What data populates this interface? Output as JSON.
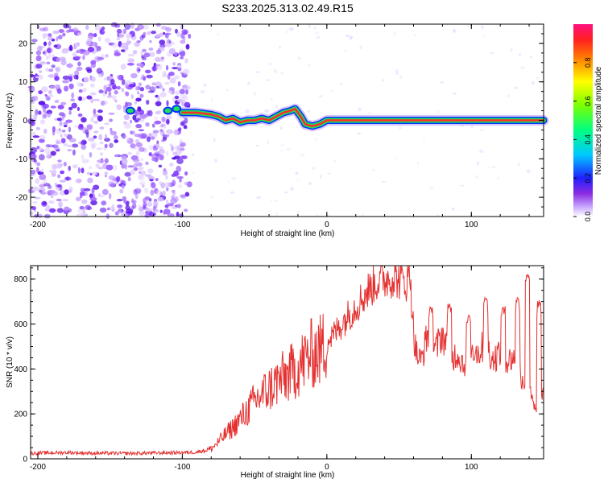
{
  "title": "S233.2025.313.02.49.R15",
  "colors": {
    "line": "#e53030",
    "band_core": "#ff2a2a",
    "band_mid": "#22dd55",
    "band_edge": "#0033ff",
    "noise": "#7a2bff"
  },
  "chart_data": [
    {
      "type": "heatmap",
      "name": "spectrogram",
      "xlabel": "Height of straight line (km)",
      "ylabel": "Frequency (Hz)",
      "xlim": [
        -205,
        150
      ],
      "ylim": [
        -25,
        25
      ],
      "xticks": [
        -200,
        -100,
        0,
        100
      ],
      "yticks": [
        -20,
        -10,
        0,
        10,
        20
      ],
      "colorbar": {
        "label": "Normalized spectral amplitude",
        "range": [
          0,
          1
        ],
        "ticks": [
          0.0,
          0.2,
          0.4,
          0.6,
          0.8
        ],
        "tick_labels": [
          "0.0",
          "0.2",
          "0.4",
          "0.6",
          "0.8"
        ]
      },
      "ridge": {
        "x": [
          -100,
          -90,
          -80,
          -75,
          -70,
          -65,
          -60,
          -55,
          -50,
          -45,
          -40,
          -35,
          -30,
          -25,
          -22,
          -18,
          -15,
          -10,
          -5,
          0,
          50,
          100,
          150
        ],
        "freq": [
          2,
          2,
          1.5,
          1,
          0,
          0.5,
          -0.5,
          0,
          0,
          0.5,
          0,
          1,
          2,
          2.5,
          3,
          1,
          -1,
          -1.5,
          -1,
          0,
          0,
          0,
          0
        ]
      },
      "noise_region_xmax": -95
    },
    {
      "type": "line",
      "name": "snr",
      "xlabel": "Height of straight line (km)",
      "ylabel": "SNR (10 * v/v)",
      "xlim": [
        -205,
        150
      ],
      "ylim": [
        0,
        860
      ],
      "xticks": [
        -200,
        -100,
        0,
        100
      ],
      "yticks": [
        0,
        200,
        400,
        600,
        800
      ],
      "x": [
        -205,
        -180,
        -160,
        -140,
        -120,
        -100,
        -90,
        -80,
        -75,
        -70,
        -65,
        -60,
        -55,
        -50,
        -45,
        -40,
        -35,
        -30,
        -25,
        -20,
        -15,
        -10,
        -5,
        0,
        5,
        10,
        15,
        20,
        25,
        30,
        35,
        40,
        45,
        50,
        55,
        58,
        60,
        62,
        65,
        70,
        75,
        80,
        85,
        90,
        95,
        100,
        105,
        110,
        115,
        120,
        125,
        130,
        135,
        140,
        145,
        150
      ],
      "y": [
        25,
        28,
        25,
        24,
        26,
        28,
        30,
        45,
        75,
        110,
        140,
        175,
        215,
        255,
        285,
        310,
        340,
        360,
        380,
        410,
        440,
        470,
        480,
        520,
        555,
        600,
        640,
        680,
        720,
        760,
        790,
        800,
        810,
        800,
        790,
        820,
        560,
        470,
        430,
        560,
        480,
        560,
        440,
        470,
        420,
        500,
        470,
        520,
        440,
        480,
        430,
        460,
        360,
        300,
        200,
        320
      ],
      "peaks": [
        {
          "x": 72,
          "y": 680
        },
        {
          "x": 85,
          "y": 690
        },
        {
          "x": 98,
          "y": 640
        },
        {
          "x": 110,
          "y": 720
        },
        {
          "x": 122,
          "y": 680
        },
        {
          "x": 132,
          "y": 720
        },
        {
          "x": 139,
          "y": 820
        },
        {
          "x": 147,
          "y": 705
        }
      ]
    }
  ]
}
